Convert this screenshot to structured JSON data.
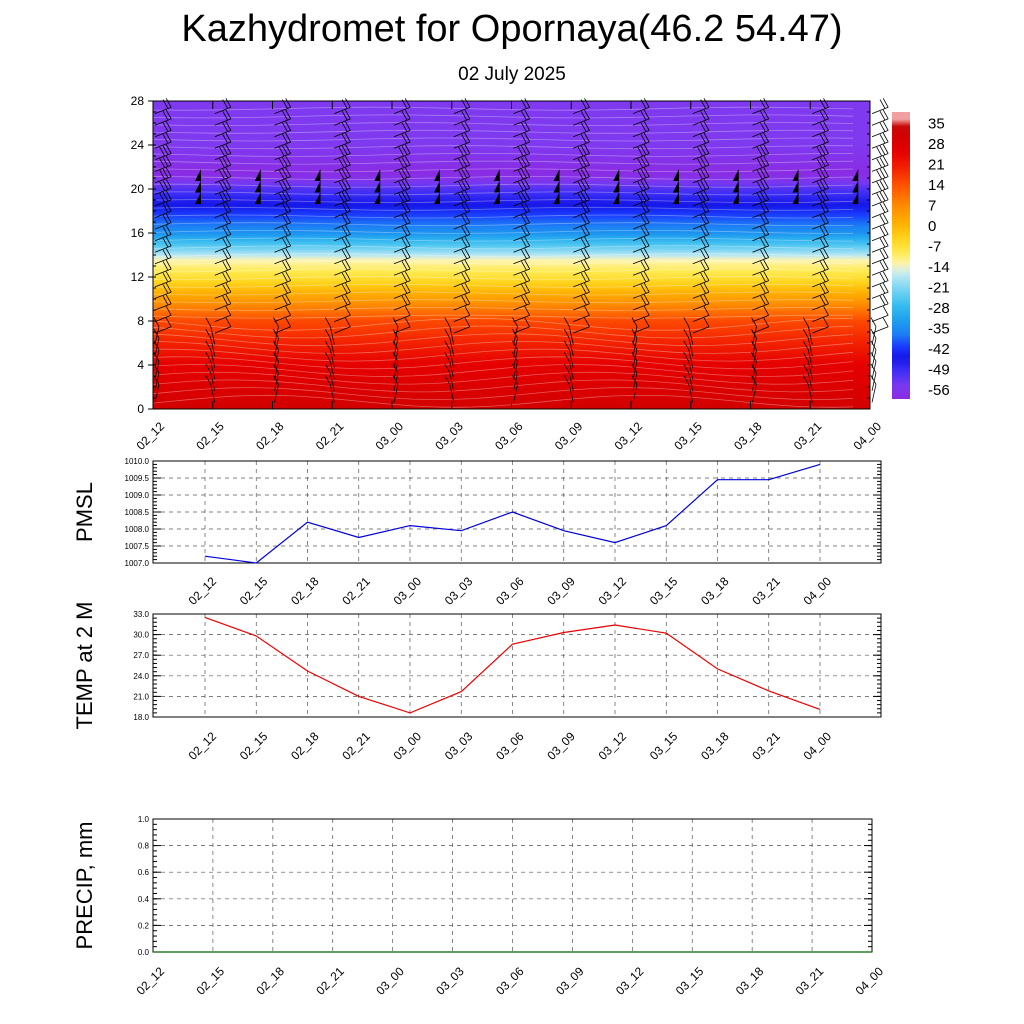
{
  "title": "Kazhydromet for Opornaya(46.2 54.47)",
  "subtitle": "02 July 2025",
  "time_labels": [
    "02_12",
    "02_15",
    "02_18",
    "02_21",
    "03_00",
    "03_03",
    "03_06",
    "03_09",
    "03_12",
    "03_15",
    "03_18",
    "03_21",
    "04_00"
  ],
  "chart_data": [
    {
      "type": "heatmap",
      "title": "",
      "ylabel": "",
      "y_ticks": [
        0,
        4,
        8,
        12,
        16,
        20,
        24,
        28
      ],
      "ylim": [
        0,
        28
      ],
      "x": [
        "02_12",
        "02_15",
        "02_18",
        "02_21",
        "03_00",
        "03_03",
        "03_06",
        "03_09",
        "03_12",
        "03_15",
        "03_18",
        "03_21",
        "04_00"
      ],
      "colorbar_labels": [
        "35",
        "28",
        "21",
        "14",
        "7",
        "0",
        "-7",
        "-14",
        "-21",
        "-28",
        "-35",
        "-42",
        "-49",
        "-56"
      ],
      "temperature_profile": [
        {
          "level": 0,
          "value": 30
        },
        {
          "level": 4,
          "value": 24
        },
        {
          "level": 8,
          "value": 14
        },
        {
          "level": 12,
          "value": -8
        },
        {
          "level": 13.5,
          "value": -14
        },
        {
          "level": 16,
          "value": -35
        },
        {
          "level": 20,
          "value": -52
        },
        {
          "level": 21.3,
          "value": -60
        },
        {
          "level": 24,
          "value": -56
        },
        {
          "level": 28,
          "value": -56
        }
      ],
      "wind_barbs": "shown",
      "colors": {
        "hot": "#dd0000",
        "cold": "#8a2be2"
      }
    },
    {
      "type": "line",
      "ylabel": "PMSL",
      "ylim": [
        1007.0,
        1010.0
      ],
      "y_ticks": [
        "1007.0",
        "1007.5",
        "1008.0",
        "1008.5",
        "1009.0",
        "1009.5",
        "1010.0"
      ],
      "x": [
        "02_12",
        "02_15",
        "02_18",
        "02_21",
        "03_00",
        "03_03",
        "03_06",
        "03_09",
        "03_12",
        "03_15",
        "03_18",
        "03_21",
        "04_00"
      ],
      "values": [
        1007.2,
        1007.0,
        1008.2,
        1007.75,
        1008.1,
        1007.95,
        1008.5,
        1007.95,
        1007.6,
        1008.1,
        1009.45,
        1009.45,
        1009.9
      ],
      "color": "#0000dd",
      "grid": true
    },
    {
      "type": "line",
      "ylabel": "TEMP at 2 M",
      "ylim": [
        18.0,
        33.0
      ],
      "y_ticks": [
        "18.0",
        "21.0",
        "24.0",
        "27.0",
        "30.0",
        "33.0"
      ],
      "x": [
        "02_12",
        "02_15",
        "02_18",
        "02_21",
        "03_00",
        "03_03",
        "03_06",
        "03_09",
        "03_12",
        "03_15",
        "03_18",
        "03_21",
        "04_00"
      ],
      "values": [
        32.5,
        29.8,
        24.7,
        21.0,
        18.6,
        21.7,
        28.6,
        30.3,
        31.4,
        30.2,
        25.0,
        21.8,
        19.1
      ],
      "color": "#ee0000",
      "grid": true
    },
    {
      "type": "line",
      "ylabel": "PRECIP, mm",
      "ylim": [
        0.0,
        1.0
      ],
      "y_ticks": [
        "0.0",
        "0.2",
        "0.4",
        "0.6",
        "0.8",
        "1.0"
      ],
      "x": [
        "02_12",
        "02_15",
        "02_18",
        "02_21",
        "03_00",
        "03_03",
        "03_06",
        "03_09",
        "03_12",
        "03_15",
        "03_18",
        "03_21",
        "04_00"
      ],
      "values": [
        0,
        0,
        0,
        0,
        0,
        0,
        0,
        0,
        0,
        0,
        0,
        0,
        0
      ],
      "color": "#006400",
      "grid": true
    }
  ]
}
